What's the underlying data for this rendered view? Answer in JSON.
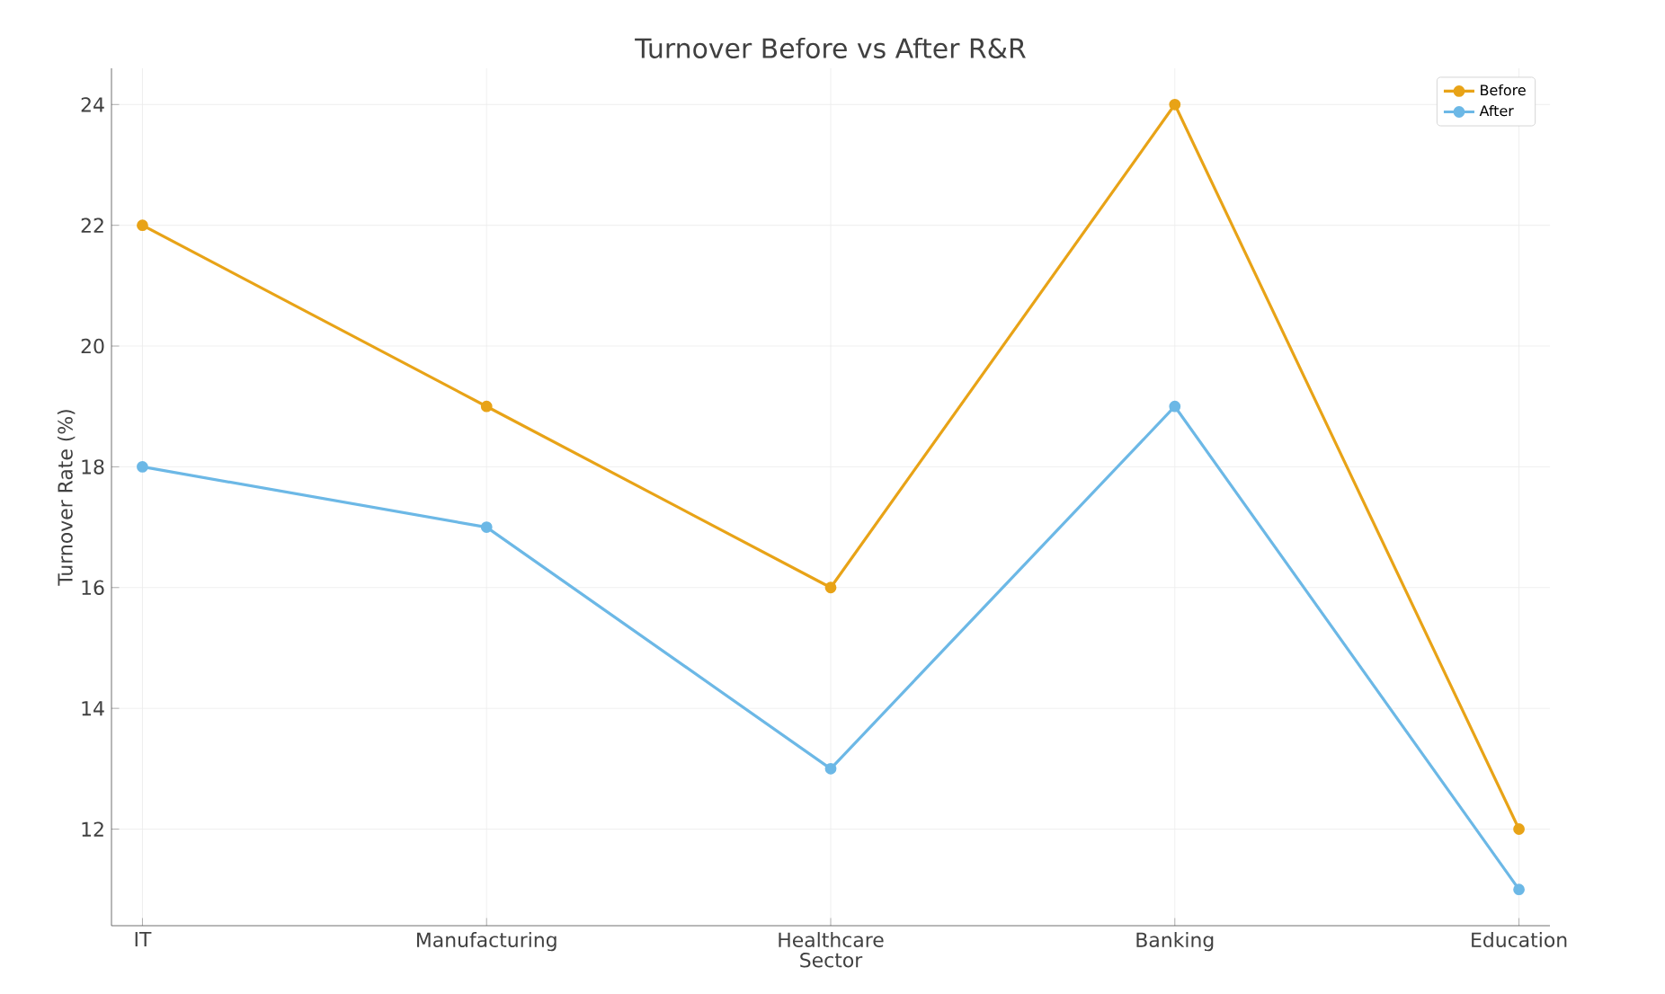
{
  "chart_data": {
    "type": "line",
    "title": "Turnover Before vs After R&R",
    "xlabel": "Sector",
    "ylabel": "Turnover Rate (%)",
    "categories": [
      "IT",
      "Manufacturing",
      "Healthcare",
      "Banking",
      "Education"
    ],
    "series": [
      {
        "name": "Before",
        "color": "#e8a317",
        "values": [
          22,
          19,
          16,
          24,
          12
        ]
      },
      {
        "name": "After",
        "color": "#6cb8e6",
        "values": [
          18,
          17,
          13,
          19,
          11
        ]
      }
    ],
    "ylim": [
      10.4,
      24.6
    ],
    "yticks": [
      12,
      14,
      16,
      18,
      20,
      22,
      24
    ],
    "grid": true,
    "legend": "top right",
    "marker": "circle",
    "line_style": "solid"
  }
}
